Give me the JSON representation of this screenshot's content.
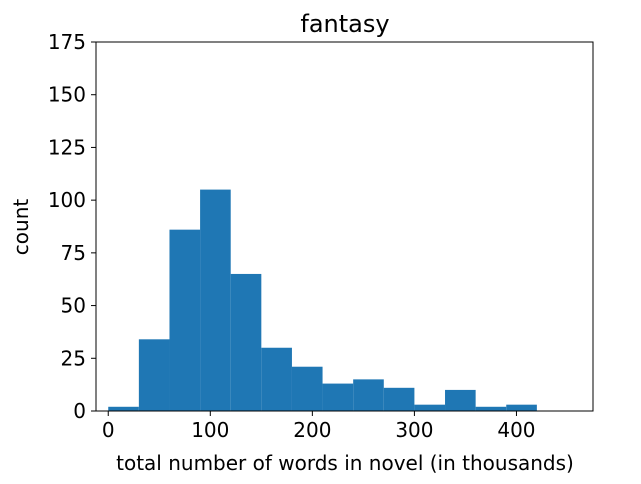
{
  "chart_data": {
    "type": "bar",
    "subtype": "histogram",
    "title": "fantasy",
    "xlabel": "total number of words in novel (in thousands)",
    "ylabel": "count",
    "xlim": [
      -12,
      475
    ],
    "ylim": [
      0,
      175
    ],
    "x_ticks": [
      0,
      100,
      200,
      300,
      400
    ],
    "y_ticks": [
      0,
      25,
      50,
      75,
      100,
      125,
      150,
      175
    ],
    "bin_width": 30,
    "bins": [
      {
        "start": 0,
        "end": 30,
        "count": 2
      },
      {
        "start": 30,
        "end": 60,
        "count": 34
      },
      {
        "start": 60,
        "end": 90,
        "count": 86
      },
      {
        "start": 90,
        "end": 120,
        "count": 105
      },
      {
        "start": 120,
        "end": 150,
        "count": 65
      },
      {
        "start": 150,
        "end": 180,
        "count": 30
      },
      {
        "start": 180,
        "end": 210,
        "count": 21
      },
      {
        "start": 210,
        "end": 240,
        "count": 13
      },
      {
        "start": 240,
        "end": 270,
        "count": 15
      },
      {
        "start": 270,
        "end": 300,
        "count": 11
      },
      {
        "start": 300,
        "end": 330,
        "count": 3
      },
      {
        "start": 330,
        "end": 360,
        "count": 10
      },
      {
        "start": 360,
        "end": 390,
        "count": 2
      },
      {
        "start": 390,
        "end": 420,
        "count": 3
      }
    ],
    "bar_color": "#1f77b4",
    "grid": false,
    "legend": "none"
  }
}
